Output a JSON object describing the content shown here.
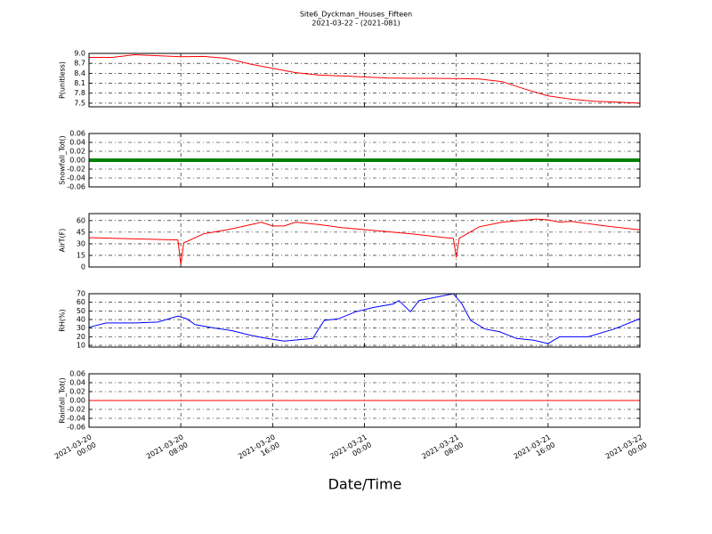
{
  "title": "Site6_Dyckman_Houses_Fifteen",
  "subtitle": "2021-03-22 - (2021-081)",
  "x_label": "Date/Time",
  "x_axis": {
    "xlim": [
      "2021-03-20 00:00",
      "2021-03-22 00:00"
    ],
    "xticks": [
      {
        "value": "2021-03-20 00:00",
        "label": [
          "2021-03-20",
          "00:00"
        ]
      },
      {
        "value": "2021-03-20 08:00",
        "label": [
          "2021-03-20",
          "08:00"
        ]
      },
      {
        "value": "2021-03-20 16:00",
        "label": [
          "2021-03-20",
          "16:00"
        ]
      },
      {
        "value": "2021-03-21 00:00",
        "label": [
          "2021-03-21",
          "00:00"
        ]
      },
      {
        "value": "2021-03-21 08:00",
        "label": [
          "2021-03-21",
          "08:00"
        ]
      },
      {
        "value": "2021-03-21 16:00",
        "label": [
          "2021-03-21",
          "16:00"
        ]
      },
      {
        "value": "2021-03-22 00:00",
        "label": [
          "2021-03-22",
          "00:00"
        ]
      }
    ]
  },
  "chart_data": [
    {
      "type": "line",
      "y_label": "P(unitless)",
      "color": "#ff0000",
      "x": [
        "2021-03-20 00:00",
        "2021-03-20 02:00",
        "2021-03-20 04:00",
        "2021-03-20 06:00",
        "2021-03-20 08:00",
        "2021-03-20 10:00",
        "2021-03-20 12:00",
        "2021-03-20 14:00",
        "2021-03-20 16:00",
        "2021-03-20 18:00",
        "2021-03-20 20:00",
        "2021-03-20 22:00",
        "2021-03-21 00:00",
        "2021-03-21 02:00",
        "2021-03-21 04:00",
        "2021-03-21 06:00",
        "2021-03-21 08:00",
        "2021-03-21 10:00",
        "2021-03-21 12:00",
        "2021-03-21 14:00",
        "2021-03-21 16:00",
        "2021-03-21 18:00",
        "2021-03-21 20:00",
        "2021-03-21 22:00",
        "2021-03-22 00:00"
      ],
      "values": [
        8.88,
        8.88,
        8.96,
        8.93,
        8.9,
        8.91,
        8.85,
        8.68,
        8.55,
        8.42,
        8.35,
        8.32,
        8.29,
        8.26,
        8.25,
        8.25,
        8.24,
        8.23,
        8.15,
        7.92,
        7.72,
        7.62,
        7.56,
        7.53,
        7.5
      ],
      "ylim": [
        7.39,
        9.0
      ],
      "yticks": [
        7.5,
        7.8,
        8.1,
        8.4,
        8.7,
        {
          "value": 9,
          "label": "9.0"
        }
      ],
      "grid": true
    },
    {
      "type": "line",
      "y_label": "Snowfall_Tot()",
      "color": "#008000",
      "x": [
        "2021-03-20 00:00",
        "2021-03-20 02:00",
        "2021-03-20 04:00",
        "2021-03-20 06:00",
        "2021-03-20 08:00",
        "2021-03-20 10:00",
        "2021-03-20 12:00",
        "2021-03-20 14:00",
        "2021-03-20 16:00",
        "2021-03-20 18:00",
        "2021-03-20 20:00",
        "2021-03-20 22:00",
        "2021-03-21 00:00",
        "2021-03-21 02:00",
        "2021-03-21 04:00",
        "2021-03-21 06:00",
        "2021-03-21 08:00",
        "2021-03-21 10:00",
        "2021-03-21 12:00",
        "2021-03-21 14:00",
        "2021-03-21 16:00",
        "2021-03-21 18:00",
        "2021-03-21 20:00",
        "2021-03-21 22:00",
        "2021-03-22 00:00"
      ],
      "values": [
        0,
        0,
        0,
        0,
        0,
        0,
        0,
        0,
        0,
        0,
        0,
        0,
        0,
        0,
        0,
        0,
        0,
        0,
        0,
        0,
        0,
        0,
        0,
        0,
        0
      ],
      "ylim": [
        -0.06,
        0.06
      ],
      "yticks": [
        -0.06,
        -0.04,
        -0.02,
        {
          "value": 0,
          "label": "0.00"
        },
        0.02,
        0.04,
        0.06
      ],
      "grid": true
    },
    {
      "type": "line",
      "y_label": "AirT(F)",
      "color": "#ff0000",
      "x": [
        "2021-03-20 00:00",
        "2021-03-20 07:45",
        "2021-03-20 08:00",
        "2021-03-20 08:15",
        "2021-03-20 10:00",
        "2021-03-20 12:00",
        "2021-03-20 14:30",
        "2021-03-20 15:00",
        "2021-03-20 16:00",
        "2021-03-20 17:00",
        "2021-03-20 18:00",
        "2021-03-20 20:00",
        "2021-03-20 22:00",
        "2021-03-21 01:00",
        "2021-03-21 04:00",
        "2021-03-21 07:00",
        "2021-03-21 07:45",
        "2021-03-21 08:00",
        "2021-03-21 08:15",
        "2021-03-21 10:00",
        "2021-03-21 12:00",
        "2021-03-21 15:00",
        "2021-03-21 16:00",
        "2021-03-21 17:00",
        "2021-03-21 18:00",
        "2021-03-21 21:00",
        "2021-03-22 00:00"
      ],
      "values": [
        38,
        35,
        3,
        31,
        43,
        48,
        56,
        58,
        53,
        53,
        58,
        55,
        51,
        47,
        43,
        38,
        37,
        12,
        37,
        52,
        58,
        62,
        61,
        58,
        59,
        53,
        48
      ],
      "ylim": [
        0,
        69
      ],
      "yticks": [
        0,
        15,
        30,
        45,
        60
      ],
      "grid": true
    },
    {
      "type": "line",
      "y_label": "RH(%)",
      "color": "#0000ff",
      "x": [
        "2021-03-20 00:00",
        "2021-03-20 01:30",
        "2021-03-20 04:00",
        "2021-03-20 06:00",
        "2021-03-20 07:45",
        "2021-03-20 08:30",
        "2021-03-20 09:15",
        "2021-03-20 11:00",
        "2021-03-20 12:30",
        "2021-03-20 14:00",
        "2021-03-20 14:45",
        "2021-03-20 15:30",
        "2021-03-20 17:00",
        "2021-03-20 19:30",
        "2021-03-20 20:00",
        "2021-03-20 20:30",
        "2021-03-20 21:45",
        "2021-03-20 23:15",
        "2021-03-21 00:45",
        "2021-03-21 02:30",
        "2021-03-21 03:00",
        "2021-03-21 04:00",
        "2021-03-21 04:45",
        "2021-03-21 06:15",
        "2021-03-21 07:45",
        "2021-03-21 08:30",
        "2021-03-21 09:15",
        "2021-03-21 10:30",
        "2021-03-21 11:45",
        "2021-03-21 13:15",
        "2021-03-21 14:45",
        "2021-03-21 16:00",
        "2021-03-21 17:00",
        "2021-03-21 19:30",
        "2021-03-21 21:45",
        "2021-03-22 00:00"
      ],
      "values": [
        31,
        36,
        36,
        37,
        44,
        41,
        34,
        30,
        27,
        22,
        20,
        18,
        15,
        18,
        29,
        39,
        41,
        49,
        54,
        58,
        62,
        49,
        62,
        66,
        70,
        58,
        39,
        29,
        26,
        18,
        16,
        12,
        20,
        20,
        29,
        41
      ],
      "ylim": [
        8,
        70
      ],
      "yticks": [
        10,
        20,
        30,
        40,
        50,
        60,
        70
      ],
      "grid": true
    },
    {
      "type": "line",
      "y_label": "Rainfall_Tot()",
      "color": "#ff0000",
      "x": [
        "2021-03-20 00:00",
        "2021-03-20 02:00",
        "2021-03-20 04:00",
        "2021-03-20 06:00",
        "2021-03-20 08:00",
        "2021-03-20 10:00",
        "2021-03-20 12:00",
        "2021-03-20 14:00",
        "2021-03-20 16:00",
        "2021-03-20 18:00",
        "2021-03-20 20:00",
        "2021-03-20 22:00",
        "2021-03-21 00:00",
        "2021-03-21 02:00",
        "2021-03-21 04:00",
        "2021-03-21 06:00",
        "2021-03-21 08:00",
        "2021-03-21 10:00",
        "2021-03-21 12:00",
        "2021-03-21 14:00",
        "2021-03-21 16:00",
        "2021-03-21 18:00",
        "2021-03-21 20:00",
        "2021-03-21 22:00",
        "2021-03-22 00:00"
      ],
      "values": [
        0,
        0,
        0,
        0,
        0,
        0,
        0,
        0,
        0,
        0,
        0,
        0,
        0,
        0,
        0,
        0,
        0,
        0,
        0,
        0,
        0,
        0,
        0,
        0,
        0
      ],
      "ylim": [
        -0.06,
        0.06
      ],
      "yticks": [
        -0.06,
        -0.04,
        -0.02,
        {
          "value": 0,
          "label": "0.00"
        },
        0.02,
        0.04,
        0.06
      ],
      "grid": true
    }
  ]
}
